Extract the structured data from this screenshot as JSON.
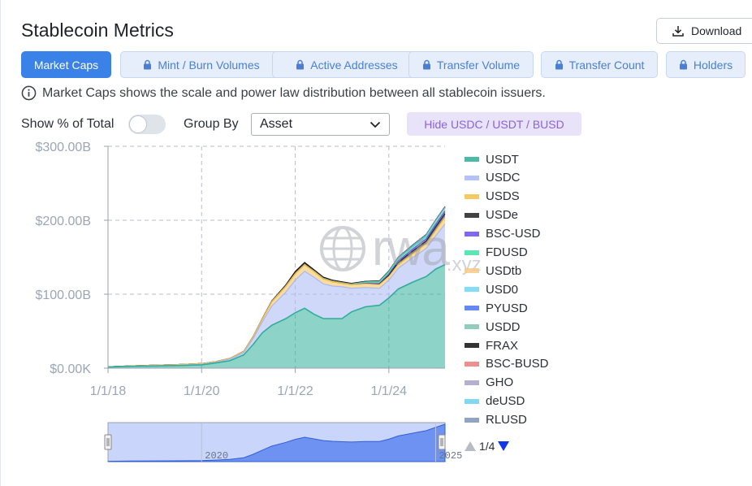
{
  "title": "Stablecoin Metrics",
  "download_label": "Download",
  "tabs": [
    {
      "label": "Market Caps",
      "active": true,
      "locked": false
    },
    {
      "label": "Mint / Burn Volumes",
      "active": false,
      "locked": true
    },
    {
      "label": "Active Addresses",
      "active": false,
      "locked": true
    },
    {
      "label": "Transfer Volume",
      "active": false,
      "locked": true
    },
    {
      "label": "Transfer Count",
      "active": false,
      "locked": true
    },
    {
      "label": "Holders",
      "active": false,
      "locked": true
    }
  ],
  "info_text": "Market Caps shows the scale and power law distribution between all stablecoin issuers.",
  "controls": {
    "show_pct_label": "Show % of Total",
    "show_pct_on": false,
    "group_by_label": "Group By",
    "group_by_value": "Asset",
    "hide_button_label": "Hide USDC / USDT / BUSD"
  },
  "watermark": {
    "text": "rwa",
    "sub": ".xyz"
  },
  "pager": {
    "text": "1/4"
  },
  "colors": {
    "USDT": "#2fae9a",
    "USDC": "#a9b8f5",
    "USDS": "#f5c04a",
    "USDe": "#222222",
    "BSC-USD": "#6a4cf0",
    "FDUSD": "#3fe2a6",
    "USDtb": "#f7c98a",
    "USD0": "#6fd8f5",
    "PYUSD": "#4b74f0",
    "USDD": "#7fc4b2",
    "FRAX": "#111111",
    "BSC-BUSD": "#f07a7a",
    "GHO": "#a9a3c9",
    "deUSD": "#6ad3ef",
    "RLUSD": "#7e95b8"
  },
  "chart_data": {
    "type": "area",
    "stacked": true,
    "title": "",
    "xlabel": "",
    "ylabel": "",
    "ylim": [
      0,
      300
    ],
    "y_unit": "B",
    "y_ticks": [
      "$0.00K",
      "$100.00B",
      "$200.00B",
      "$300.00B"
    ],
    "y_tick_values": [
      0,
      100,
      200,
      300
    ],
    "x_ticks": [
      "1/1/18",
      "1/1/20",
      "1/1/22",
      "1/1/24"
    ],
    "x_tick_values": [
      2018,
      2020,
      2022,
      2024
    ],
    "xlim": [
      2018,
      2025.2
    ],
    "grid": true,
    "legend_position": "right",
    "x": [
      2018,
      2018.5,
      2019,
      2019.5,
      2020,
      2020.3,
      2020.6,
      2020.9,
      2021.1,
      2021.3,
      2021.5,
      2021.8,
      2022.0,
      2022.2,
      2022.4,
      2022.6,
      2022.8,
      2023.0,
      2023.2,
      2023.5,
      2023.8,
      2024.0,
      2024.2,
      2024.5,
      2024.8,
      2025.0,
      2025.2
    ],
    "series": [
      {
        "name": "USDT",
        "values": [
          1.5,
          2.5,
          3,
          3.5,
          4.5,
          7,
          10,
          18,
          32,
          48,
          58,
          67,
          75,
          81,
          73,
          67,
          67,
          67,
          76,
          83,
          85,
          95,
          107,
          116,
          124,
          134,
          140
        ]
      },
      {
        "name": "USDC",
        "values": [
          0,
          0,
          0.3,
          0.5,
          0.8,
          1,
          2,
          3,
          8,
          15,
          26,
          36,
          44,
          50,
          50,
          47,
          44,
          43,
          32,
          26,
          23,
          24,
          28,
          33,
          38,
          45,
          55
        ]
      },
      {
        "name": "USDS",
        "values": [
          0.3,
          0.6,
          0.8,
          0.8,
          0.8,
          0.8,
          1,
          1.5,
          2.5,
          4,
          6,
          8,
          9,
          9,
          8,
          7,
          6,
          5,
          5,
          5,
          5,
          5,
          5,
          5,
          6,
          7,
          9
        ]
      },
      {
        "name": "USDe",
        "values": [
          0,
          0,
          0,
          0,
          0,
          0,
          0,
          0,
          0,
          0,
          0,
          0,
          0,
          0,
          0,
          0,
          0,
          0,
          0,
          0,
          0.5,
          1.5,
          3,
          4,
          4,
          5,
          5
        ]
      },
      {
        "name": "BSC-USD",
        "values": [
          0,
          0,
          0,
          0,
          0,
          0,
          0,
          0,
          0,
          0,
          0,
          0,
          0,
          0,
          0,
          0,
          0,
          0,
          0,
          0.6,
          1,
          1.5,
          2,
          2.5,
          3,
          3,
          3
        ]
      },
      {
        "name": "FDUSD",
        "values": [
          0,
          0,
          0,
          0,
          0,
          0,
          0,
          0,
          0,
          0,
          0,
          0,
          0,
          0,
          0,
          0,
          0,
          0,
          0,
          1.2,
          1.8,
          2.5,
          3,
          3,
          2.5,
          2,
          1.5
        ]
      },
      {
        "name": "USDtb",
        "values": [
          0,
          0,
          0,
          0,
          0,
          0,
          0,
          0,
          0,
          0,
          0,
          0,
          0,
          0,
          0,
          0,
          0,
          0,
          0,
          0,
          0,
          0,
          0,
          0,
          0.3,
          1,
          1.4
        ]
      },
      {
        "name": "USD0",
        "values": [
          0,
          0,
          0,
          0,
          0,
          0,
          0,
          0,
          0,
          0,
          0,
          0,
          0,
          0,
          0,
          0,
          0,
          0,
          0,
          0,
          0,
          0,
          0.2,
          0.5,
          1,
          1.3,
          1.4
        ]
      },
      {
        "name": "PYUSD",
        "values": [
          0,
          0,
          0,
          0,
          0,
          0,
          0,
          0,
          0,
          0,
          0,
          0,
          0,
          0,
          0,
          0,
          0,
          0,
          0,
          0.2,
          0.3,
          0.4,
          0.5,
          0.8,
          0.6,
          0.7,
          0.8
        ]
      },
      {
        "name": "USDD",
        "values": [
          0,
          0,
          0,
          0,
          0,
          0,
          0,
          0,
          0,
          0,
          0,
          0,
          0,
          0,
          0.5,
          0.7,
          0.7,
          0.7,
          0.7,
          0.7,
          0.7,
          0.7,
          0.7,
          0.7,
          0.7,
          0.7,
          0.7
        ]
      },
      {
        "name": "FRAX",
        "values": [
          0,
          0,
          0,
          0,
          0,
          0,
          0.1,
          0.2,
          0.3,
          0.5,
          0.8,
          1.5,
          2.5,
          2.8,
          1.5,
          1.3,
          1.1,
          1,
          0.9,
          0.7,
          0.6,
          0.6,
          0.5,
          0.4,
          0.4,
          0.3,
          0.3
        ]
      },
      {
        "name": "BSC-BUSD",
        "values": [
          0,
          0,
          0,
          0,
          0,
          0,
          0,
          0,
          0,
          0,
          0,
          0,
          0,
          0,
          0,
          0,
          0,
          0,
          0,
          0,
          0,
          0,
          0,
          0,
          0,
          0,
          0
        ]
      },
      {
        "name": "GHO",
        "values": [
          0,
          0,
          0,
          0,
          0,
          0,
          0,
          0,
          0,
          0,
          0,
          0,
          0,
          0,
          0,
          0,
          0,
          0,
          0,
          0,
          0,
          0,
          0.1,
          0.1,
          0.2,
          0.2,
          0.2
        ]
      },
      {
        "name": "deUSD",
        "values": [
          0,
          0,
          0,
          0,
          0,
          0,
          0,
          0,
          0,
          0,
          0,
          0,
          0,
          0,
          0,
          0,
          0,
          0,
          0,
          0,
          0,
          0,
          0,
          0.1,
          0.2,
          0.2,
          0.2
        ]
      },
      {
        "name": "RLUSD",
        "values": [
          0,
          0,
          0,
          0,
          0,
          0,
          0,
          0,
          0,
          0,
          0,
          0,
          0,
          0,
          0,
          0,
          0,
          0,
          0,
          0,
          0,
          0,
          0,
          0,
          0.1,
          0.1,
          0.2
        ]
      }
    ],
    "navigator": {
      "tick_labels": [
        "2020",
        "2025"
      ],
      "tick_values": [
        2020,
        2025
      ]
    }
  }
}
